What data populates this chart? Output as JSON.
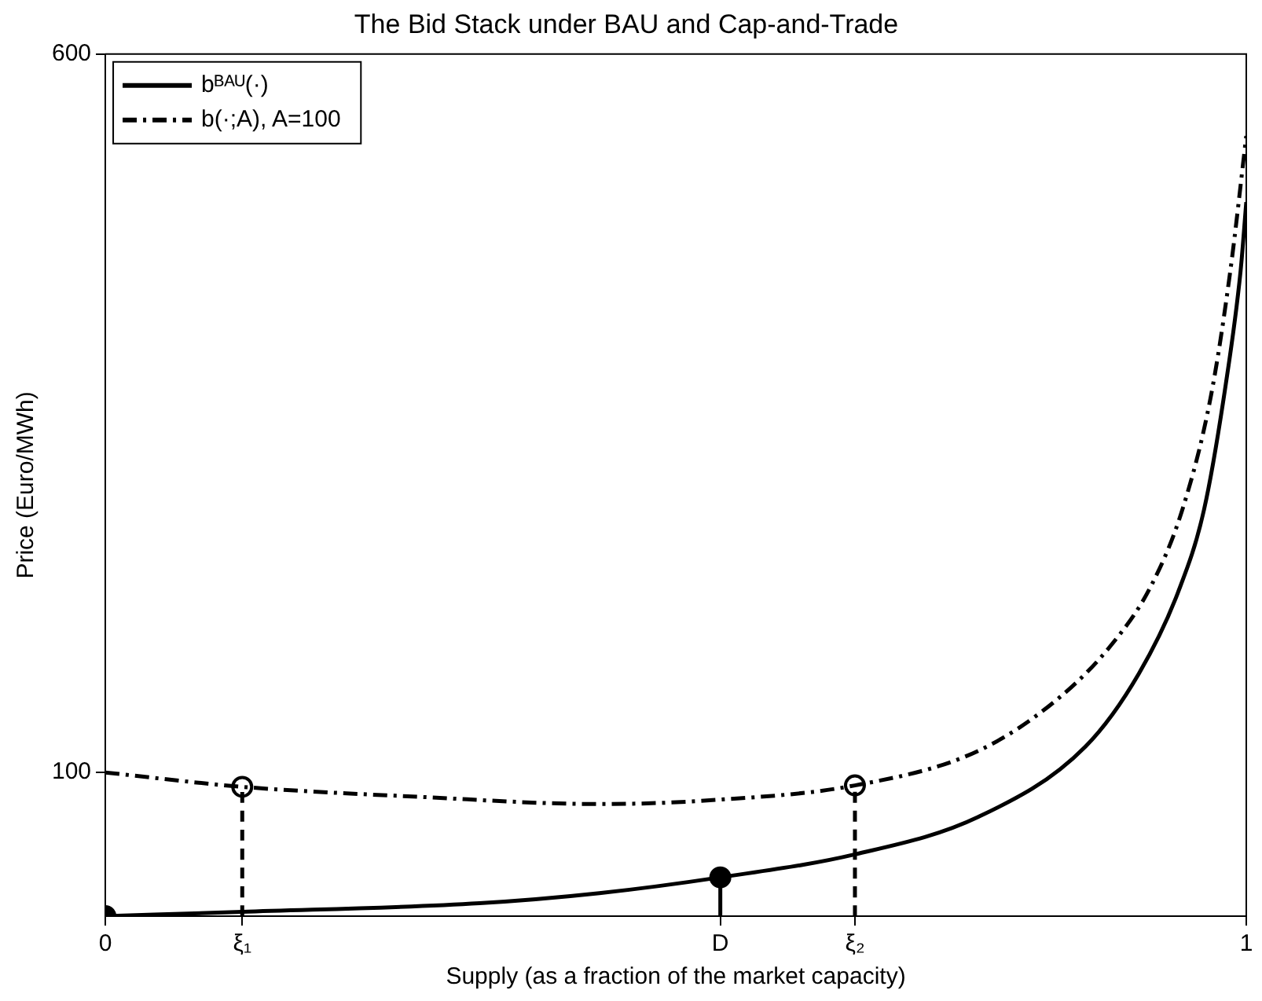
{
  "chart_data": {
    "type": "line",
    "title": "The Bid Stack under BAU and Cap-and-Trade",
    "xlabel": "Supply (as a fraction of the market capacity)",
    "ylabel": "Price (Euro/MWh)",
    "xlim": [
      0,
      1
    ],
    "xticks": [
      0,
      {
        "value": 0.12,
        "label": "ξ₁"
      },
      {
        "value": 0.539,
        "label": "D"
      },
      {
        "value": 0.657,
        "label": "ξ₂"
      },
      1
    ],
    "ylim": [
      0,
      600
    ],
    "yticks": [
      100,
      600
    ],
    "grid": false,
    "legend": "top left",
    "series": [
      {
        "name": "bᴮᴬᵁ(·)",
        "color": "#000000",
        "line_style": "solid",
        "marker": "none",
        "x": [
          0,
          0.12,
          0.328,
          0.433,
          0.539,
          0.657,
          0.765,
          0.859,
          0.906,
          0.94,
          0.963,
          0.982,
          0.995,
          1
        ],
        "values": [
          0,
          3,
          9,
          16,
          27,
          43,
          69,
          118,
          169,
          225,
          283,
          370,
          449,
          497
        ]
      },
      {
        "name": "b(·;A), A=100",
        "color": "#000000",
        "line_style": "dashdot",
        "marker": "none",
        "x": [
          0,
          0.12,
          0.276,
          0.433,
          0.537,
          0.657,
          0.765,
          0.836,
          0.883,
          0.916,
          0.944,
          0.969,
          0.986,
          1
        ],
        "values": [
          100,
          90,
          83,
          78,
          81,
          91,
          115,
          152,
          190,
          229,
          283,
          362,
          449,
          543
        ]
      },
      {
        "type": "line",
        "color": "#000000",
        "line_style": "dashed",
        "marker": "none",
        "x": [
          0.12,
          0.12
        ],
        "values": [
          0,
          90
        ]
      },
      {
        "type": "line",
        "color": "#000000",
        "line_style": "dashed",
        "marker": "none",
        "x": [
          0.657,
          0.657
        ],
        "values": [
          0,
          91
        ]
      },
      {
        "type": "line",
        "color": "#000000",
        "line_style": "solid",
        "marker": "none",
        "x": [
          0.539,
          0.539
        ],
        "values": [
          0,
          27
        ]
      },
      {
        "type": "scatter",
        "color": "#000000",
        "marker": "circle",
        "x": [
          0,
          0.539
        ],
        "values": [
          0,
          27
        ]
      },
      {
        "type": "scatter",
        "color": "#ffffff",
        "marker": "circle",
        "x": [
          0.12,
          0.657
        ],
        "values": [
          90,
          91
        ]
      }
    ]
  }
}
